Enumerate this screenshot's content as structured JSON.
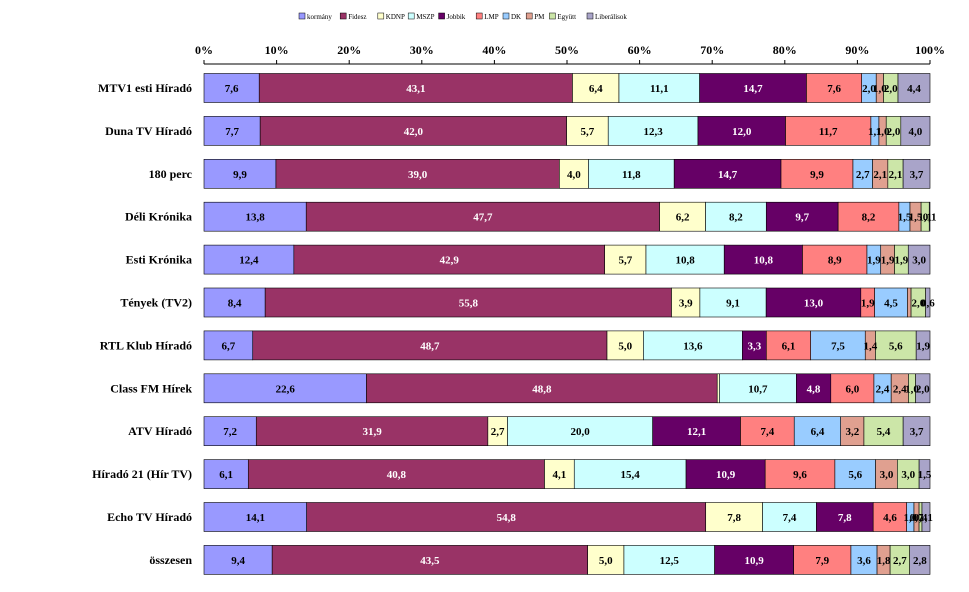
{
  "chart_data": {
    "type": "bar",
    "stacked": "percent",
    "orientation": "horizontal",
    "x_ticks": [
      "0%",
      "10%",
      "20%",
      "30%",
      "40%",
      "50%",
      "60%",
      "70%",
      "80%",
      "90%",
      "100%"
    ],
    "xlim": [
      0,
      100
    ],
    "legend_position": "top",
    "grid": false,
    "categories": [
      "MTV1 esti Híradó",
      "Duna TV Híradó",
      "180 perc",
      "Déli Krónika",
      "Esti Krónika",
      "Tények (TV2)",
      "RTL Klub Híradó",
      "Class FM Hírek",
      "ATV Híradó",
      "Híradó 21 (Hír TV)",
      "Echo TV Híradó",
      "összesen"
    ],
    "series": [
      {
        "name": "kormány",
        "color": "#9999ff",
        "values": [
          7.6,
          7.7,
          9.9,
          13.8,
          12.4,
          8.4,
          6.7,
          22.6,
          7.2,
          6.1,
          14.1,
          9.4
        ],
        "labels": [
          "7,6",
          "7,7",
          "9,9",
          "13,8",
          "12,4",
          "8,4",
          "6,7",
          "22,6",
          "7,2",
          "6,1",
          "14,1",
          "9,4"
        ]
      },
      {
        "name": "Fidesz",
        "color": "#993366",
        "values": [
          43.1,
          42.0,
          39.0,
          47.7,
          42.9,
          55.8,
          48.7,
          48.8,
          31.9,
          40.8,
          54.8,
          43.5
        ],
        "labels": [
          "43,1",
          "42,0",
          "39,0",
          "47,7",
          "42,9",
          "55,8",
          "48,7",
          "48,8",
          "31,9",
          "40,8",
          "54,8",
          "43,5"
        ]
      },
      {
        "name": "KDNP",
        "color": "#ffffcc",
        "values": [
          6.4,
          5.7,
          4.0,
          6.2,
          5.7,
          3.9,
          5.0,
          0.3,
          2.7,
          4.1,
          7.8,
          5.0
        ],
        "labels": [
          "6,4",
          "5,7",
          "4,0",
          "6,2",
          "5,7",
          "3,9",
          "5,0",
          "",
          "2,7",
          "4,1",
          "7,8",
          "5,0"
        ]
      },
      {
        "name": "MSZP",
        "color": "#ccffff",
        "values": [
          11.1,
          12.3,
          11.8,
          8.2,
          10.8,
          9.1,
          13.6,
          10.7,
          20.0,
          15.4,
          7.4,
          12.5
        ],
        "labels": [
          "11,1",
          "12,3",
          "11,8",
          "8,2",
          "10,8",
          "9,1",
          "13,6",
          "10,7",
          "20,0",
          "15,4",
          "7,4",
          "12,5"
        ]
      },
      {
        "name": "Jobbik",
        "color": "#660066",
        "values": [
          14.7,
          12.0,
          14.7,
          9.7,
          10.8,
          13.0,
          3.3,
          4.8,
          12.1,
          10.9,
          7.8,
          10.9
        ],
        "labels": [
          "14,7",
          "12,0",
          "14,7",
          "9,7",
          "10,8",
          "13,0",
          "3,3",
          "4,8",
          "12,1",
          "10,9",
          "7,8",
          "10,9"
        ]
      },
      {
        "name": "LMP",
        "color": "#ff8080",
        "values": [
          7.6,
          11.7,
          9.9,
          8.2,
          8.9,
          1.9,
          6.1,
          6.0,
          7.4,
          9.6,
          4.6,
          7.9
        ],
        "labels": [
          "7,6",
          "11,7",
          "9,9",
          "8,2",
          "8,9",
          "1,9",
          "6,1",
          "6,0",
          "7,4",
          "9,6",
          "4,6",
          "7,9"
        ]
      },
      {
        "name": "DK",
        "color": "#99ccff",
        "values": [
          2.0,
          1.1,
          2.7,
          1.5,
          1.9,
          4.5,
          7.5,
          2.4,
          6.4,
          5.6,
          1.0,
          3.6
        ],
        "labels": [
          "2,0",
          "1,1",
          "2,7",
          "1,5",
          "1,9",
          "4,5",
          "7,5",
          "2,4",
          "6,4",
          "5,6",
          "1,0",
          "3,6"
        ]
      },
      {
        "name": "PM",
        "color": "#e0a090",
        "values": [
          1.0,
          1.0,
          2.1,
          1.5,
          1.9,
          0.5,
          1.4,
          2.4,
          3.2,
          3.0,
          0.7,
          1.8
        ],
        "labels": [
          "1,0",
          "1,0",
          "2,1",
          "1,5",
          "1,9",
          "",
          "1,4",
          "2,4",
          "3,2",
          "3,0",
          "0,7",
          "1,8"
        ]
      },
      {
        "name": "Együtt",
        "color": "#cce6a8",
        "values": [
          2.0,
          2.0,
          2.1,
          1.1,
          1.9,
          2.0,
          5.6,
          1.0,
          5.4,
          3.0,
          0.4,
          2.7
        ],
        "labels": [
          "2,0",
          "2,0",
          "2,1",
          "1,1",
          "1,9",
          "2,0",
          "5,6",
          "1,0",
          "5,4",
          "3,0",
          "0,4",
          "2,7"
        ]
      },
      {
        "name": "Liberálisok",
        "color": "#a9a4c9",
        "values": [
          4.4,
          4.0,
          3.7,
          0.1,
          3.0,
          0.6,
          1.9,
          2.0,
          3.7,
          1.5,
          1.1,
          2.8
        ],
        "labels": [
          "4,4",
          "4,0",
          "3,7",
          "0,1",
          "3,0",
          "0,6",
          "1,9",
          "2,0",
          "3,7",
          "1,5",
          "1,1",
          "2,8"
        ]
      }
    ]
  }
}
